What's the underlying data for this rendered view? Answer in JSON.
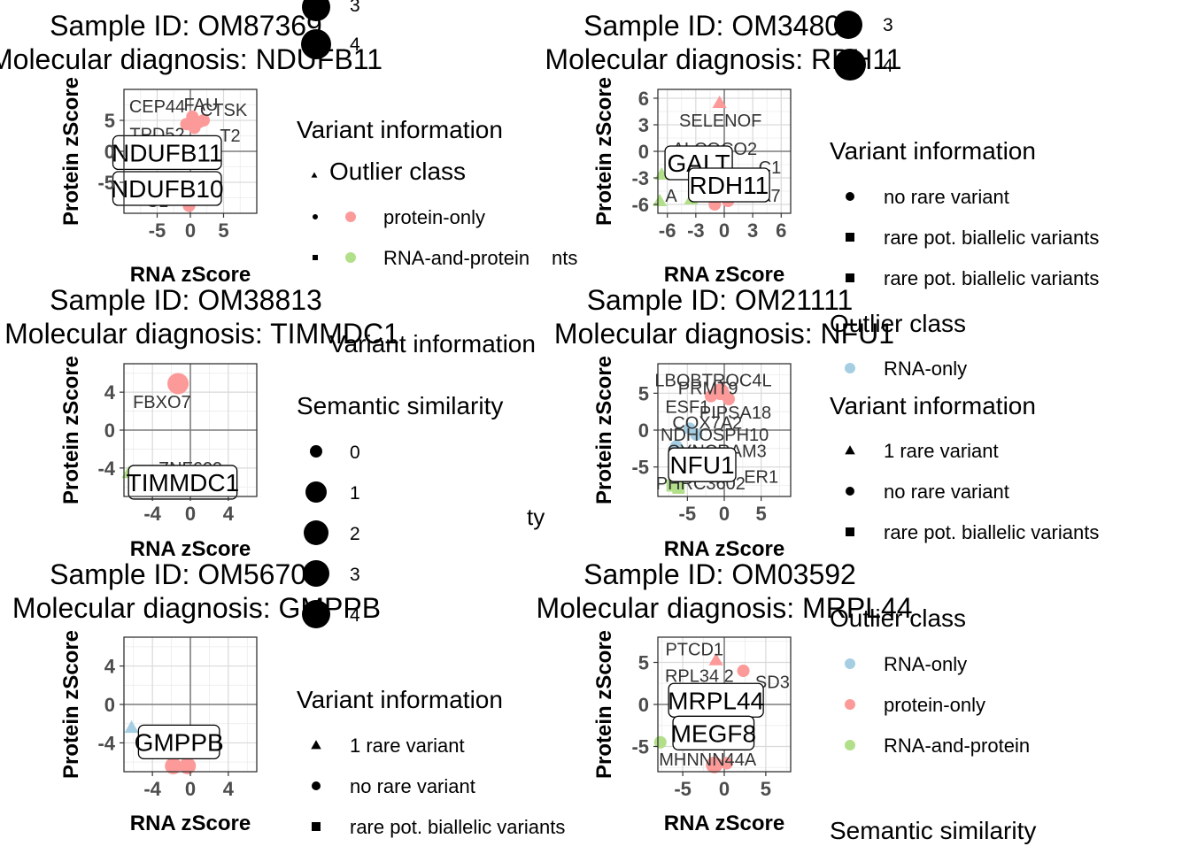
{
  "axes_titles": {
    "x": "RNA zScore",
    "y": "Protein zScore"
  },
  "colors": {
    "RNA-only": "#a6cee3",
    "protein-only": "#fb9a99",
    "RNA-and-protein": "#b2df8a",
    "panel_border": "#333333",
    "grid_major": "#d9d9d9",
    "zero_line": "#7f7f7f",
    "text": "#000000",
    "tick_text": "#4d4d4d"
  },
  "chart_data": [
    {
      "type": "scatter",
      "title": "Sample ID: OM87369",
      "subtitle": "Molecular diagnosis: NDUFB11",
      "xlabel": "RNA zScore",
      "ylabel": "Protein zScore",
      "xlim": [
        -10,
        10
      ],
      "ylim": [
        -10,
        10
      ],
      "xticks": [
        -5,
        0,
        5
      ],
      "yticks": [
        -5,
        0,
        5
      ],
      "grid": true,
      "points": [
        {
          "x": 0.3,
          "y": 5.6,
          "cls": "protein-only",
          "shape": "dot",
          "r": 0
        },
        {
          "x": 1.3,
          "y": 4.7,
          "cls": "protein-only",
          "shape": "dot",
          "r": 0
        },
        {
          "x": -0.6,
          "y": 4.4,
          "cls": "protein-only",
          "shape": "dot",
          "r": 0
        },
        {
          "x": 2.0,
          "y": 5.0,
          "cls": "protein-only",
          "shape": "dot",
          "r": 0
        },
        {
          "x": 0.6,
          "y": 3.8,
          "cls": "protein-only",
          "shape": "dot",
          "r": 0
        },
        {
          "x": -0.2,
          "y": -8.8,
          "cls": "protein-only",
          "shape": "dot",
          "r": 0
        }
      ],
      "labels": [
        {
          "text": "CEP44",
          "x": -5.0,
          "y": 7.3
        },
        {
          "text": "FAU",
          "x": 1.6,
          "y": 7.6
        },
        {
          "text": "CTSK",
          "x": 5.0,
          "y": 6.7
        },
        {
          "text": "TPD52",
          "x": -5.0,
          "y": 2.8
        },
        {
          "text": "T2",
          "x": 6.0,
          "y": 2.6
        },
        {
          "text": "C1",
          "x": -5.0,
          "y": -8.0
        }
      ],
      "boxed_labels": [
        {
          "text": "NDUFB11",
          "x": -3.5,
          "y": -0.2
        },
        {
          "text": "NDUFB10",
          "x": -3.5,
          "y": -6.0
        }
      ]
    },
    {
      "type": "scatter",
      "title": "Sample ID: OM34804",
      "subtitle": "Molecular diagnosis: RDH11",
      "xlabel": "RNA zScore",
      "ylabel": "Protein zScore",
      "xlim": [
        -7,
        7
      ],
      "ylim": [
        -7,
        7
      ],
      "xticks": [
        -6,
        -3,
        0,
        3,
        6
      ],
      "yticks": [
        -6,
        -3,
        0,
        3,
        6
      ],
      "grid": true,
      "points": [
        {
          "x": -0.5,
          "y": 5.5,
          "cls": "protein-only",
          "shape": "triangle",
          "r": 0
        },
        {
          "x": -6.6,
          "y": -2.6,
          "cls": "RNA-and-protein",
          "shape": "triangle",
          "r": 0
        },
        {
          "x": -6.8,
          "y": -5.6,
          "cls": "RNA-and-protein",
          "shape": "triangle",
          "r": 0
        },
        {
          "x": -3.5,
          "y": -5.4,
          "cls": "RNA-and-protein",
          "shape": "triangle",
          "r": 0
        },
        {
          "x": -1.0,
          "y": -6.0,
          "cls": "protein-only",
          "shape": "dot",
          "r": 0
        },
        {
          "x": 0.4,
          "y": -5.6,
          "cls": "protein-only",
          "shape": "dot",
          "r": 0
        }
      ],
      "labels": [
        {
          "text": "SELENOF",
          "x": -0.4,
          "y": 3.5
        },
        {
          "text": "ALCOCO2",
          "x": -1.0,
          "y": 0.3
        },
        {
          "text": "C1",
          "x": 4.8,
          "y": -1.8
        },
        {
          "text": "A",
          "x": -5.6,
          "y": -5.0
        },
        {
          "text": "A7",
          "x": 4.8,
          "y": -5.0
        }
      ],
      "boxed_labels": [
        {
          "text": "GALT",
          "x": -2.7,
          "y": -1.3
        },
        {
          "text": "RDH11",
          "x": 0.5,
          "y": -3.8
        }
      ]
    },
    {
      "type": "scatter",
      "title": "Sample ID: OM38813",
      "subtitle": "Molecular diagnosis: TIMMDC1",
      "xlabel": "RNA zScore",
      "ylabel": "Protein zScore",
      "xlim": [
        -7,
        7
      ],
      "ylim": [
        -7,
        7
      ],
      "xticks": [
        -4,
        0,
        4
      ],
      "yticks": [
        -4,
        0,
        4
      ],
      "grid": true,
      "points": [
        {
          "x": -1.3,
          "y": 4.9,
          "cls": "protein-only",
          "shape": "dot",
          "r": 2
        },
        {
          "x": -6.5,
          "y": -4.5,
          "cls": "RNA-and-protein",
          "shape": "triangle",
          "r": 0
        },
        {
          "x": -0.3,
          "y": -5.5,
          "cls": "protein-only",
          "shape": "dot",
          "r": 0
        }
      ],
      "labels": [
        {
          "text": "FBXO7",
          "x": -3.0,
          "y": 3.0
        },
        {
          "text": "ZNF609",
          "x": 0.0,
          "y": -4.0
        }
      ],
      "boxed_labels": [
        {
          "text": "TIMMDC1",
          "x": -0.8,
          "y": -5.5
        }
      ]
    },
    {
      "type": "scatter",
      "title": "Sample ID: OM21111",
      "subtitle": "Molecular diagnosis: NFU1",
      "xlabel": "RNA zScore",
      "ylabel": "Protein zScore",
      "xlim": [
        -9,
        9
      ],
      "ylim": [
        -9,
        9
      ],
      "xticks": [
        -5,
        0,
        5
      ],
      "yticks": [
        -5,
        0,
        5
      ],
      "grid": true,
      "points": [
        {
          "x": -0.5,
          "y": 5.2,
          "cls": "protein-only",
          "shape": "dot",
          "r": 1
        },
        {
          "x": 0.6,
          "y": 4.2,
          "cls": "protein-only",
          "shape": "dot",
          "r": 0
        },
        {
          "x": -1.8,
          "y": 4.6,
          "cls": "protein-only",
          "shape": "dot",
          "r": 0
        },
        {
          "x": -4.7,
          "y": 0.2,
          "cls": "RNA-only",
          "shape": "dot",
          "r": 0
        },
        {
          "x": -6.5,
          "y": -2.2,
          "cls": "RNA-only",
          "shape": "dot",
          "r": 0
        },
        {
          "x": -3.8,
          "y": -0.6,
          "cls": "RNA-only",
          "shape": "dot",
          "r": 0
        },
        {
          "x": -7.0,
          "y": -7.5,
          "cls": "RNA-and-protein",
          "shape": "square",
          "r": 0
        },
        {
          "x": -6.2,
          "y": -7.8,
          "cls": "RNA-and-protein",
          "shape": "square",
          "r": 0
        }
      ],
      "labels": [
        {
          "text": "LBOBTROC4L",
          "x": -1.5,
          "y": 6.8
        },
        {
          "text": "PRMT9",
          "x": -2.2,
          "y": 5.7
        },
        {
          "text": "ESF1",
          "x": -5.0,
          "y": 3.2
        },
        {
          "text": "PIPSA18",
          "x": 1.5,
          "y": 2.4
        },
        {
          "text": "COX7A2",
          "x": -2.3,
          "y": 1.0
        },
        {
          "text": "NDHOSPH10",
          "x": -1.3,
          "y": -0.6
        },
        {
          "text": "CYNCRAM3",
          "x": -1.0,
          "y": -2.8
        },
        {
          "text": "ER1",
          "x": 5.0,
          "y": -6.3
        },
        {
          "text": "PHRC3602",
          "x": -3.2,
          "y": -7.2
        }
      ],
      "boxed_labels": [
        {
          "text": "NFU1",
          "x": -3.0,
          "y": -4.7
        }
      ]
    },
    {
      "type": "scatter",
      "title": "Sample ID: OM56706",
      "subtitle": "Molecular diagnosis: GMPPB",
      "xlabel": "RNA zScore",
      "ylabel": "Protein zScore",
      "xlim": [
        -7,
        7
      ],
      "ylim": [
        -7,
        7
      ],
      "xticks": [
        -4,
        0,
        4
      ],
      "yticks": [
        -4,
        0,
        4
      ],
      "grid": true,
      "points": [
        {
          "x": -6.2,
          "y": -2.4,
          "cls": "RNA-only",
          "shape": "triangle",
          "r": 0
        },
        {
          "x": -1.8,
          "y": -6.4,
          "cls": "protein-only",
          "shape": "dot",
          "r": 1
        },
        {
          "x": -0.3,
          "y": -6.4,
          "cls": "protein-only",
          "shape": "dot",
          "r": 1
        }
      ],
      "labels": [],
      "boxed_labels": [
        {
          "text": "GMPPB",
          "x": -1.2,
          "y": -3.9
        }
      ]
    },
    {
      "type": "scatter",
      "title": "Sample ID: OM03592",
      "subtitle": "Molecular diagnosis: MRPL44",
      "xlabel": "RNA zScore",
      "ylabel": "Protein zScore",
      "xlim": [
        -8,
        8
      ],
      "ylim": [
        -8,
        8
      ],
      "xticks": [
        -5,
        0,
        5
      ],
      "yticks": [
        -5,
        0,
        5
      ],
      "grid": true,
      "points": [
        {
          "x": -1.0,
          "y": 5.3,
          "cls": "protein-only",
          "shape": "triangle",
          "r": 0
        },
        {
          "x": 2.3,
          "y": 4.0,
          "cls": "protein-only",
          "shape": "dot",
          "r": 0
        },
        {
          "x": -7.7,
          "y": -4.5,
          "cls": "RNA-and-protein",
          "shape": "dot",
          "r": 0
        },
        {
          "x": -1.2,
          "y": -7.2,
          "cls": "protein-only",
          "shape": "dot",
          "r": 1
        },
        {
          "x": 0.3,
          "y": -7.0,
          "cls": "protein-only",
          "shape": "dot",
          "r": 0
        }
      ],
      "labels": [
        {
          "text": "PTCD1",
          "x": -3.6,
          "y": 6.6
        },
        {
          "text": "RPL34 2",
          "x": -3.0,
          "y": 3.4
        },
        {
          "text": "SD3",
          "x": 5.8,
          "y": 2.7
        },
        {
          "text": "MHNNN44A",
          "x": -2.0,
          "y": -6.5
        }
      ],
      "boxed_labels": [
        {
          "text": "MRPL44",
          "x": -1.0,
          "y": 0.5
        },
        {
          "text": "MEGF8",
          "x": -1.3,
          "y": -3.4
        }
      ]
    }
  ],
  "legends": {
    "panel1": {
      "variant_title": "Variant information",
      "outlier_title": "Outlier class",
      "outlier_items": [
        "protein-only",
        "RNA-and-protein"
      ],
      "clipped_suffix": "nts",
      "top_sizes": [
        "3",
        "4"
      ]
    },
    "panel3": {
      "variant_title": "Variant information",
      "semantic_title": "Semantic similarity",
      "semantic_sizes": [
        "0",
        "1",
        "2",
        "3",
        "4"
      ],
      "clipped_suffix": "ty"
    },
    "panel5": {
      "variant_title": "Variant information",
      "variant_items": [
        "1 rare variant",
        "no rare variant",
        "rare pot. biallelic variants"
      ]
    },
    "right_top": {
      "top_sizes": [
        "3",
        "4"
      ],
      "variant_title": "Variant information",
      "variant_items": [
        "no rare variant",
        "rare pot. biallelic variants",
        "rare pot. biallelic variants"
      ],
      "outlier_title": "Outlier class",
      "outlier_items": [
        "RNA-only"
      ]
    },
    "right_mid": {
      "variant_title": "Variant information",
      "variant_items": [
        "1 rare variant",
        "no rare variant",
        "rare pot. biallelic variants"
      ]
    },
    "right_bottom": {
      "outlier_title": "Outlier class",
      "outlier_items": [
        "RNA-only",
        "protein-only",
        "RNA-and-protein"
      ],
      "semantic_title": "Semantic similarity"
    }
  }
}
